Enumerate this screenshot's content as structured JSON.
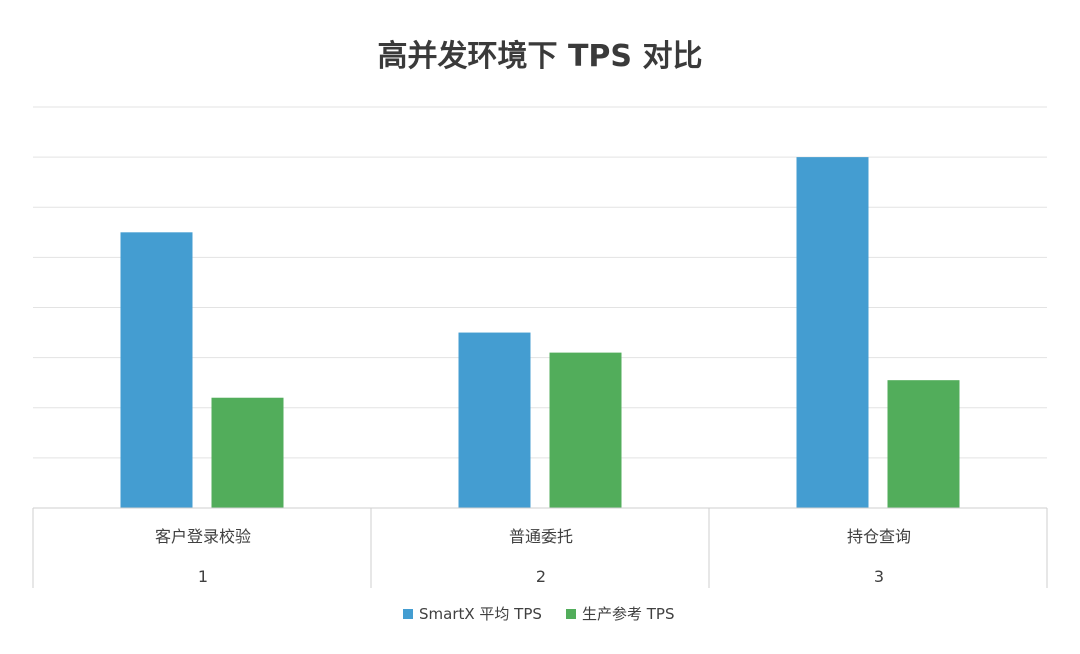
{
  "chart_data": {
    "type": "bar",
    "title": "高并发环境下 TPS 对比",
    "categories": [
      "客户登录校验",
      "普通委托",
      "持仓查询"
    ],
    "category_index": [
      "1",
      "2",
      "3"
    ],
    "series": [
      {
        "name": "SmartX 平均 TPS",
        "values": [
          5.5,
          3.5,
          7.0
        ],
        "color": "#449DD1"
      },
      {
        "name": "生产参考 TPS",
        "values": [
          2.2,
          3.1,
          2.55
        ],
        "color": "#52AD5B"
      }
    ],
    "ylim": [
      0,
      8
    ],
    "grid": true,
    "y_tick_labels_visible": false,
    "legend_position": "bottom",
    "gridline_color": "#e3e3e3",
    "axis_color": "#cfcfcf"
  }
}
